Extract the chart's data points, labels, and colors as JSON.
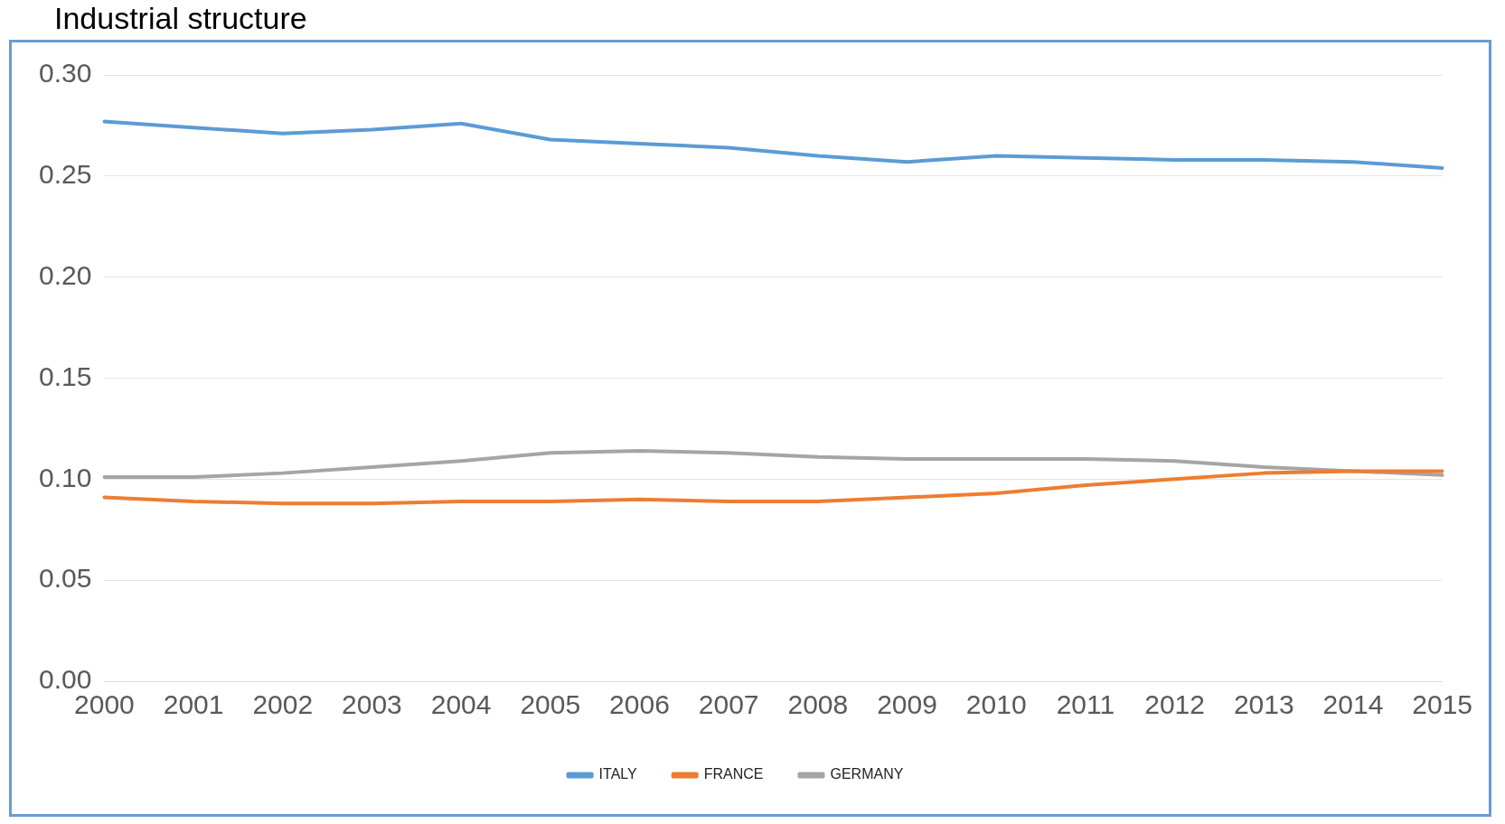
{
  "chart_data": {
    "type": "line",
    "title": "Industrial structure",
    "categories": [
      "2000",
      "2001",
      "2002",
      "2003",
      "2004",
      "2005",
      "2006",
      "2007",
      "2008",
      "2009",
      "2010",
      "2011",
      "2012",
      "2013",
      "2014",
      "2015"
    ],
    "series": [
      {
        "name": "ITALY",
        "color": "#5b9bd5",
        "values": [
          0.277,
          0.274,
          0.271,
          0.273,
          0.276,
          0.268,
          0.266,
          0.264,
          0.26,
          0.257,
          0.26,
          0.259,
          0.258,
          0.258,
          0.257,
          0.254
        ]
      },
      {
        "name": "FRANCE",
        "color": "#ed7d31",
        "values": [
          0.091,
          0.089,
          0.088,
          0.088,
          0.089,
          0.089,
          0.09,
          0.089,
          0.089,
          0.091,
          0.093,
          0.097,
          0.1,
          0.103,
          0.104,
          0.104
        ]
      },
      {
        "name": "GERMANY",
        "color": "#a5a5a5",
        "values": [
          0.101,
          0.101,
          0.103,
          0.106,
          0.109,
          0.113,
          0.114,
          0.113,
          0.111,
          0.11,
          0.11,
          0.11,
          0.109,
          0.106,
          0.104,
          0.102
        ]
      }
    ],
    "ylim": [
      0,
      0.3
    ],
    "yticks": [
      {
        "value": 0,
        "label": "0.00"
      },
      {
        "value": 0.05,
        "label": "0.05"
      },
      {
        "value": 0.1,
        "label": "0.10"
      },
      {
        "value": 0.15,
        "label": "0.15"
      },
      {
        "value": 0.2,
        "label": "0.20"
      },
      {
        "value": 0.25,
        "label": "0.25"
      },
      {
        "value": 0.3,
        "label": "0.30"
      }
    ],
    "grid": "y",
    "legend": "bottom",
    "marker": "none",
    "line_style": "solid"
  }
}
